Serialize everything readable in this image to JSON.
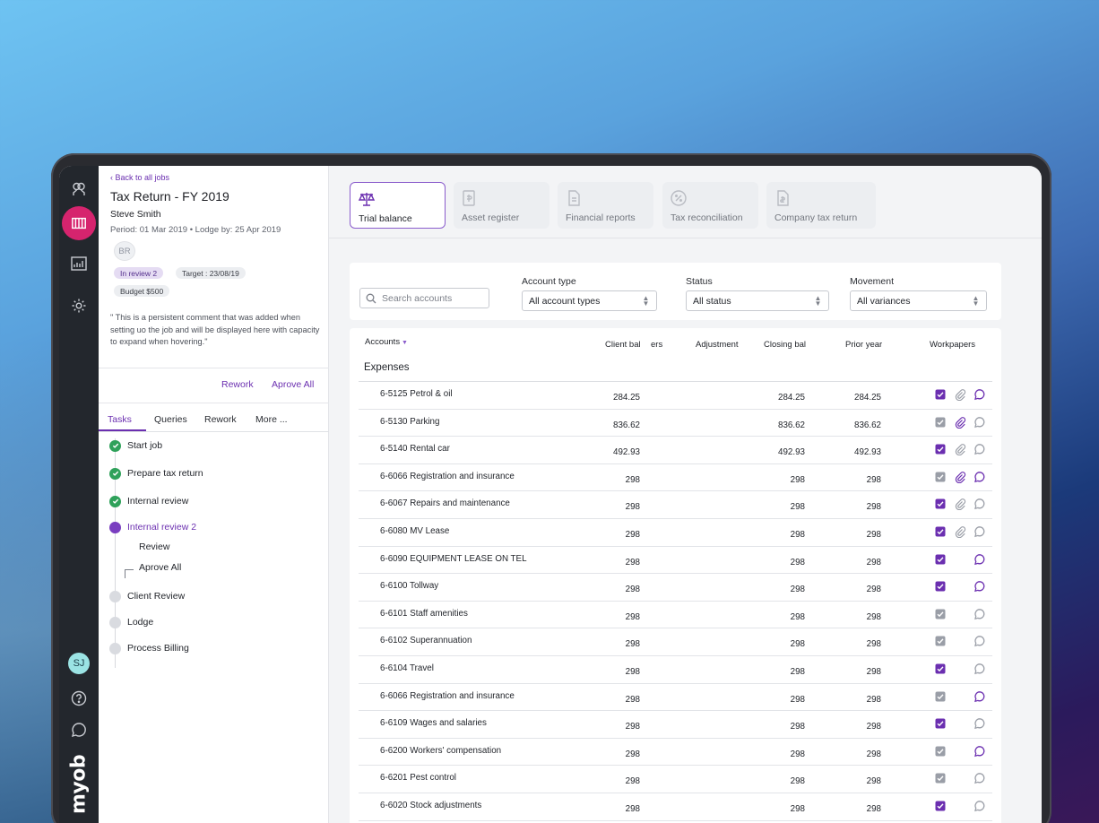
{
  "rail": {
    "items": [
      {
        "icon": "people-icon"
      },
      {
        "icon": "jobs-icon",
        "active": true
      },
      {
        "icon": "reports-icon"
      },
      {
        "icon": "gear-icon"
      }
    ],
    "user_initials": "SJ",
    "bottom_icons": [
      "help-icon",
      "chat-icon"
    ],
    "brand": "myob"
  },
  "job": {
    "back_label": "Back to all jobs",
    "title": "Tax Return - FY 2019",
    "client": "Steve Smith",
    "period": "Period: 01 Mar 2019  •  Lodge by: 25 Apr 2019",
    "assignee_initials": "BR",
    "status_badge": "In review 2",
    "target_badge": "Target : 23/08/19",
    "budget_badge": "Budget $500",
    "comment": "\" This is a persistent comment that was added when setting uo the job and will be displayed here with capacity to expand when hovering.\"",
    "rework_label": "Rework",
    "approve_all_label": "Aprove All",
    "tabs": [
      "Tasks",
      "Queries",
      "Rework",
      "More ..."
    ],
    "steps": [
      {
        "label": "Start job",
        "state": "done"
      },
      {
        "label": "Prepare tax return",
        "state": "done"
      },
      {
        "label": "Internal review",
        "state": "done"
      },
      {
        "label": "Internal review 2",
        "state": "current"
      },
      {
        "label": "Client Review",
        "state": "pending"
      },
      {
        "label": "Lodge",
        "state": "pending"
      },
      {
        "label": "Process Billing",
        "state": "pending"
      }
    ],
    "substeps": [
      "Review",
      "Aprove All"
    ]
  },
  "report_tabs": [
    {
      "label": "Trial balance",
      "icon": "scales-icon",
      "active": true
    },
    {
      "label": "Asset register",
      "icon": "asset-icon"
    },
    {
      "label": "Financial reports",
      "icon": "document-icon"
    },
    {
      "label": "Tax reconciliation",
      "icon": "percent-icon"
    },
    {
      "label": "Company tax return",
      "icon": "tax-doc-icon"
    }
  ],
  "filters": {
    "search_placeholder": "Search accounts",
    "account_type_label": "Account type",
    "account_type_value": "All account types",
    "status_label": "Status",
    "status_value": "All status",
    "movement_label": "Movement",
    "movement_value": "All variances"
  },
  "table": {
    "headers": {
      "accounts": "Accounts",
      "client_bal": "Client bal",
      "client_bal_overflow": "ers",
      "adjustment": "Adjustment",
      "closing_bal": "Closing bal",
      "prior_year": "Prior year",
      "workpapers": "Workpapers"
    },
    "group": "Expenses",
    "rows": [
      {
        "name": "6-5125 Petrol & oil",
        "client": "284.25",
        "closing": "284.25",
        "prior": "284.25",
        "wp": [
          "done",
          "clip",
          "chat-active"
        ]
      },
      {
        "name": "6-5130 Parking",
        "client": "836.62",
        "closing": "836.62",
        "prior": "836.62",
        "wp": [
          "todo",
          "clip-active",
          "chat"
        ]
      },
      {
        "name": "6-5140 Rental car",
        "client": "492.93",
        "closing": "492.93",
        "prior": "492.93",
        "wp": [
          "done",
          "clip",
          "chat"
        ]
      },
      {
        "name": "6-6066 Registration and insurance",
        "client": "298",
        "closing": "298",
        "prior": "298",
        "wp": [
          "todo",
          "clip-active",
          "chat-active"
        ]
      },
      {
        "name": "6-6067 Repairs and maintenance",
        "client": "298",
        "closing": "298",
        "prior": "298",
        "wp": [
          "done",
          "clip",
          "chat"
        ]
      },
      {
        "name": "6-6080 MV Lease",
        "client": "298",
        "closing": "298",
        "prior": "298",
        "wp": [
          "done",
          "clip",
          "chat"
        ]
      },
      {
        "name": "6-6090 EQUIPMENT LEASE ON TEL",
        "client": "298",
        "closing": "298",
        "prior": "298",
        "wp": [
          "done",
          "",
          "chat-active"
        ]
      },
      {
        "name": "6-6100 Tollway",
        "client": "298",
        "closing": "298",
        "prior": "298",
        "wp": [
          "done",
          "",
          "chat-active"
        ]
      },
      {
        "name": "6-6101 Staff amenities",
        "client": "298",
        "closing": "298",
        "prior": "298",
        "wp": [
          "todo",
          "",
          "chat"
        ]
      },
      {
        "name": "6-6102 Superannuation",
        "client": "298",
        "closing": "298",
        "prior": "298",
        "wp": [
          "todo",
          "",
          "chat"
        ]
      },
      {
        "name": "6-6104 Travel",
        "client": "298",
        "closing": "298",
        "prior": "298",
        "wp": [
          "done",
          "",
          "chat"
        ]
      },
      {
        "name": "6-6066 Registration and insurance",
        "client": "298",
        "closing": "298",
        "prior": "298",
        "wp": [
          "todo",
          "",
          "chat-active"
        ]
      },
      {
        "name": "6-6109 Wages and salaries",
        "client": "298",
        "closing": "298",
        "prior": "298",
        "wp": [
          "done",
          "",
          "chat"
        ]
      },
      {
        "name": "6-6200 Workers' compensation",
        "client": "298",
        "closing": "298",
        "prior": "298",
        "wp": [
          "todo",
          "",
          "chat-active"
        ]
      },
      {
        "name": "6-6201 Pest control",
        "client": "298",
        "closing": "298",
        "prior": "298",
        "wp": [
          "todo",
          "",
          "chat"
        ]
      },
      {
        "name": "6-6020 Stock adjustments",
        "client": "298",
        "closing": "298",
        "prior": "298",
        "wp": [
          "done",
          "",
          "chat"
        ]
      }
    ]
  },
  "colors": {
    "accent": "#6b2fb0",
    "rail": "#23272d",
    "active_nav": "#d6246e",
    "done": "#2fa15a"
  }
}
